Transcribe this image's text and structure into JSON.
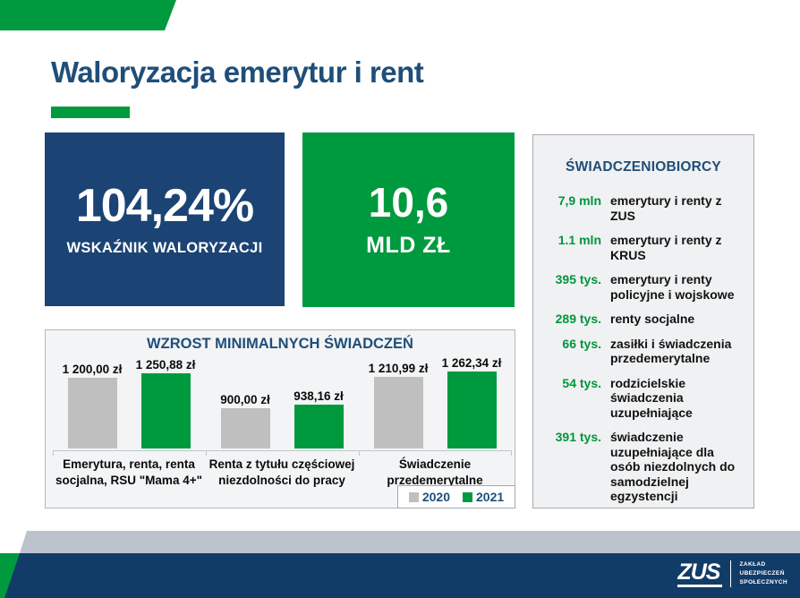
{
  "slide": {
    "title": "Waloryzacja emerytur i rent"
  },
  "stats": [
    {
      "value": "104,24%",
      "label": "WSKAŹNIK WALORYZACJI"
    },
    {
      "value": "10,6",
      "label": "MLD ZŁ"
    }
  ],
  "chart_data": {
    "type": "bar",
    "title": "WZROST MINIMALNYCH ŚWIADCZEŃ",
    "categories": [
      "Emerytura, renta, renta socjalna, RSU \"Mama 4+\"",
      "Renta z tytułu częściowej niezdolności do pracy",
      "Świadczenie przedemerytalne"
    ],
    "series": [
      {
        "name": "2020",
        "color": "#bfbfbf",
        "values": [
          1200.0,
          900.0,
          1210.99
        ],
        "labels": [
          "1 200,00 zł",
          "900,00 zł",
          "1 210,99 zł"
        ]
      },
      {
        "name": "2021",
        "color": "#009a3e",
        "values": [
          1250.88,
          938.16,
          1262.34
        ],
        "labels": [
          "1 250,88 zł",
          "938,16 zł",
          "1 262,34 zł"
        ]
      }
    ],
    "unit": "zł",
    "ylim": [
      500,
      1300
    ],
    "grid": false,
    "legend_position": "bottom-right"
  },
  "beneficiaries": {
    "title": "ŚWIADCZENIOBIORCY",
    "items": [
      {
        "value": "7,9 mln",
        "label": "emerytury i renty z ZUS"
      },
      {
        "value": "1.1 mln",
        "label": "emerytury i renty z KRUS"
      },
      {
        "value": "395 tys.",
        "label": "emerytury i renty policyjne i wojskowe"
      },
      {
        "value": "289 tys.",
        "label": "renty socjalne"
      },
      {
        "value": "66 tys.",
        "label": "zasiłki i świadczenia przedemerytalne"
      },
      {
        "value": "54 tys.",
        "label": "rodzicielskie świadczenia uzupełniające"
      },
      {
        "value": "391 tys.",
        "label": "świadczenie uzupełniające dla osób niezdolnych do samodzielnej egzystencji"
      }
    ]
  },
  "footer": {
    "logo_text": "ZUS",
    "org_lines": [
      "ZAKŁAD",
      "UBEZPIECZEŃ",
      "SPOŁECZNYCH"
    ]
  },
  "colors": {
    "accent_green": "#009a3e",
    "stat_navy": "#1b4374",
    "title_navy": "#1f4e79",
    "footer_navy": "#123c68",
    "footer_gray": "#bdc3cd",
    "bar_gray": "#bfbfbf",
    "panel_value_green": "#00953e"
  }
}
